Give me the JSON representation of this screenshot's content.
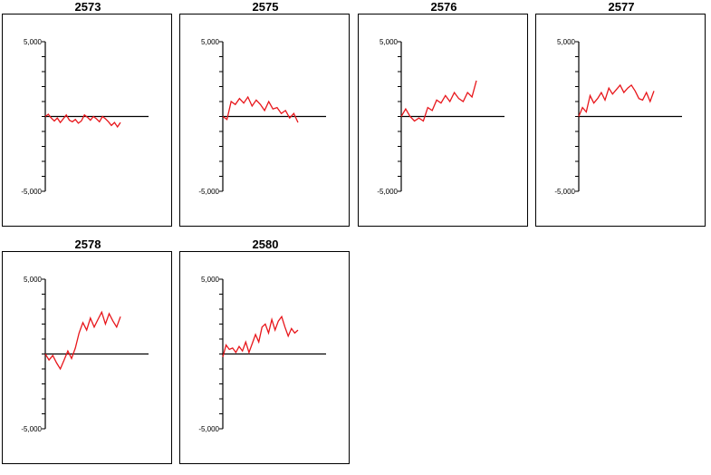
{
  "colors": {
    "series": "#e8161b",
    "axis": "#000000",
    "background": "#ffffff"
  },
  "chart_data": [
    {
      "type": "line",
      "title": "2573",
      "ylim": [
        -5000,
        5000
      ],
      "yticks_labeled": [
        "5,000",
        "-5,000"
      ],
      "grid": false,
      "values": [
        0,
        150,
        -100,
        -300,
        -100,
        -400,
        -150,
        100,
        -250,
        -350,
        -200,
        -450,
        -300,
        100,
        -50,
        -250,
        0,
        -150,
        -350,
        0,
        -150,
        -350,
        -600,
        -400,
        -700,
        -400
      ]
    },
    {
      "type": "line",
      "title": "2575",
      "ylim": [
        -5000,
        5000
      ],
      "yticks_labeled": [
        "5,000",
        "-5,000"
      ],
      "grid": false,
      "values": [
        0,
        -200,
        1000,
        800,
        1200,
        900,
        1300,
        700,
        1100,
        800,
        400,
        1000,
        500,
        600,
        200,
        400,
        -100,
        200,
        -400
      ]
    },
    {
      "type": "line",
      "title": "2576",
      "ylim": [
        -5000,
        5000
      ],
      "yticks_labeled": [
        "5,000",
        "-5,000"
      ],
      "grid": false,
      "values": [
        0,
        500,
        0,
        -300,
        -100,
        -300,
        600,
        400,
        1100,
        900,
        1400,
        1000,
        1600,
        1200,
        1000,
        1600,
        1300,
        2400
      ]
    },
    {
      "type": "line",
      "title": "2577",
      "ylim": [
        -5000,
        5000
      ],
      "yticks_labeled": [
        "5,000",
        "-5,000"
      ],
      "grid": false,
      "values": [
        0,
        600,
        300,
        1400,
        900,
        1200,
        1600,
        1100,
        1900,
        1500,
        1800,
        2100,
        1600,
        1900,
        2100,
        1700,
        1200,
        1100,
        1600,
        1000,
        1700
      ]
    },
    {
      "type": "line",
      "title": "2578",
      "ylim": [
        -5000,
        5000
      ],
      "yticks_labeled": [
        "5,000",
        "-5,000"
      ],
      "grid": false,
      "values": [
        0,
        -400,
        -100,
        -600,
        -1000,
        -400,
        200,
        -300,
        400,
        1400,
        2100,
        1600,
        2400,
        1800,
        2300,
        2800,
        2000,
        2700,
        2200,
        1800,
        2500
      ]
    },
    {
      "type": "line",
      "title": "2580",
      "ylim": [
        -5000,
        5000
      ],
      "yticks_labeled": [
        "5,000",
        "-5,000"
      ],
      "grid": false,
      "values": [
        -200,
        600,
        300,
        400,
        100,
        500,
        200,
        800,
        100,
        700,
        1300,
        800,
        1800,
        2000,
        1400,
        2300,
        1600,
        2200,
        2500,
        1800,
        1200,
        1700,
        1400,
        1600
      ]
    }
  ]
}
